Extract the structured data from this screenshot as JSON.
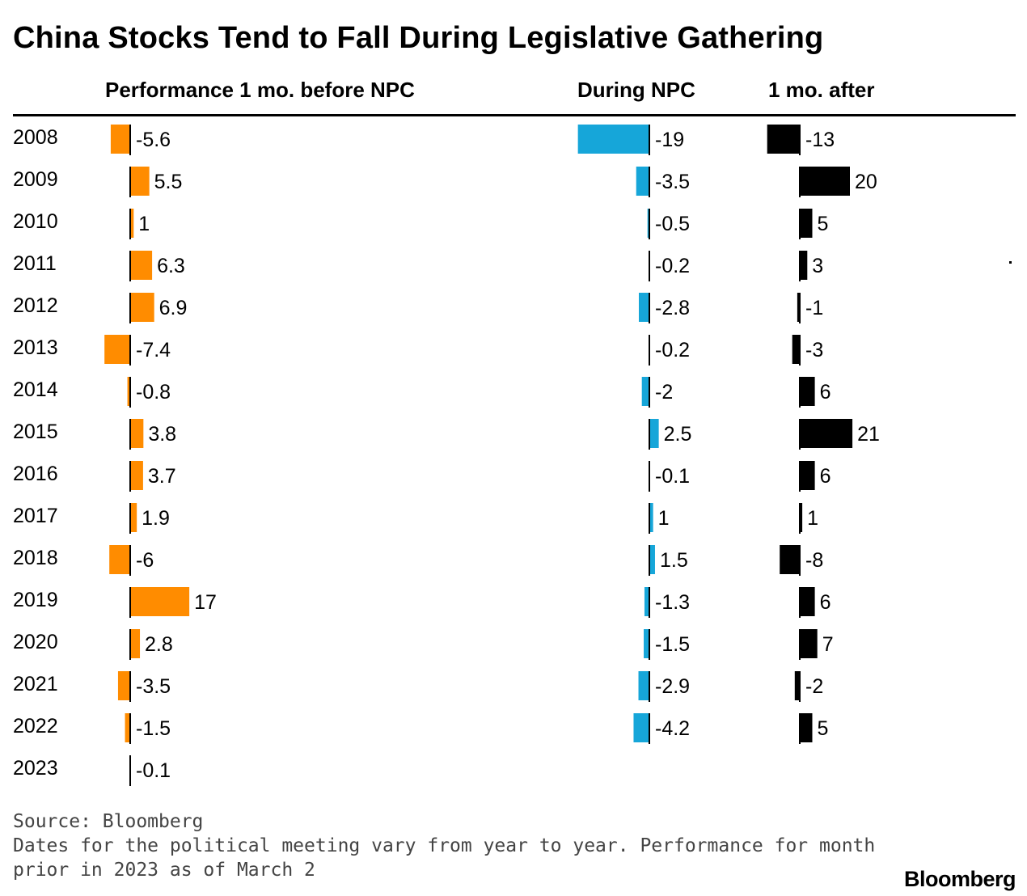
{
  "chart_data": {
    "type": "bar",
    "orientation": "horizontal",
    "title": "China Stocks Tend to Fall During Legislative Gathering",
    "categories": [
      "2008",
      "2009",
      "2010",
      "2011",
      "2012",
      "2013",
      "2014",
      "2015",
      "2016",
      "2017",
      "2018",
      "2019",
      "2020",
      "2021",
      "2022",
      "2023"
    ],
    "series": [
      {
        "name": "Performance 1 mo. before NPC",
        "color": "#ff8c00",
        "values": [
          -5.6,
          5.5,
          1,
          6.3,
          6.9,
          -7.4,
          -0.8,
          3.8,
          3.7,
          1.9,
          -6,
          17,
          2.8,
          -3.5,
          -1.5,
          -0.1
        ],
        "labels": [
          "-5.6",
          "5.5",
          "1",
          "6.3",
          "6.9",
          "-7.4",
          "-0.8",
          "3.8",
          "3.7",
          "1.9",
          "-6",
          "17",
          "2.8",
          "-3.5",
          "-1.5",
          "-0.1"
        ]
      },
      {
        "name": "During NPC",
        "color": "#16a6d9",
        "values": [
          -19,
          -3.5,
          -0.5,
          -0.2,
          -2.8,
          -0.2,
          -2,
          2.5,
          -0.1,
          1,
          1.5,
          -1.3,
          -1.5,
          -2.9,
          -4.2,
          null
        ],
        "labels": [
          "-19",
          "-3.5",
          "-0.5",
          "-0.2",
          "-2.8",
          "-0.2",
          "-2",
          "2.5",
          "-0.1",
          "1",
          "1.5",
          "-1.3",
          "-1.5",
          "-2.9",
          "-4.2",
          ""
        ]
      },
      {
        "name": "1 mo. after",
        "color": "#000000",
        "values": [
          -13,
          20,
          5,
          3,
          -1,
          -3,
          6,
          21,
          6,
          1,
          -8,
          6,
          7,
          -2,
          5,
          null
        ],
        "labels": [
          "-13",
          "20",
          "5",
          "3",
          "-1",
          "-3",
          "6",
          "21",
          "6",
          "1",
          "-8",
          "6",
          "7",
          "-2",
          "5",
          ""
        ]
      }
    ]
  },
  "footer": {
    "source": "Source: Bloomberg",
    "note_line1": "Dates for the political meeting vary from year to year. Performance for month",
    "note_line2": "prior in 2023 as of March 2"
  },
  "brand": "Bloomberg"
}
